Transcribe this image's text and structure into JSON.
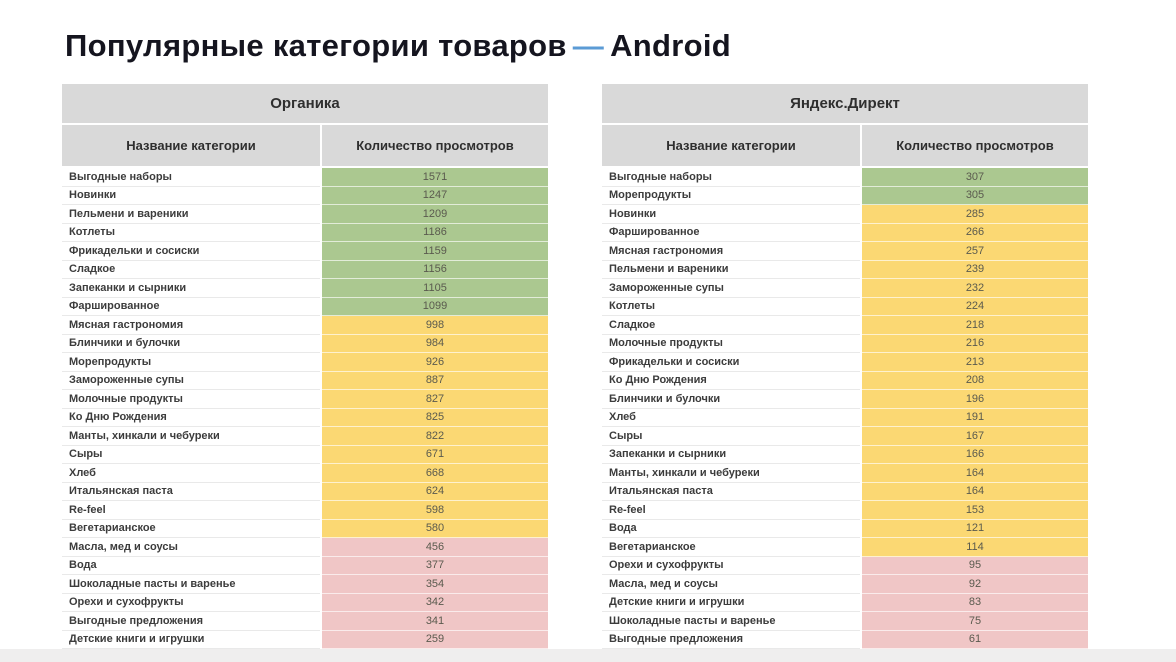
{
  "header": {
    "title": "Популярные категории товаров",
    "dash": "—",
    "platform": "Android"
  },
  "colors": {
    "green": "#abc890",
    "yellow": "#fbd873",
    "pink": "#f0c6c6",
    "header_bg": "#d9d9d9",
    "accent": "#5b9bd5",
    "footer_strip": "#efeeee",
    "title_color": "#15151f"
  },
  "chart_data": [
    {
      "type": "table",
      "title": "Органика",
      "columns": [
        "Название категории",
        "Количество просмотров"
      ],
      "legend_bands": {
        "green": "high",
        "yellow": "medium",
        "pink": "low"
      },
      "rows": [
        [
          "Выгодные наборы",
          1571,
          "green"
        ],
        [
          "Новинки",
          1247,
          "green"
        ],
        [
          "Пельмени и вареники",
          1209,
          "green"
        ],
        [
          "Котлеты",
          1186,
          "green"
        ],
        [
          "Фрикадельки и сосиски",
          1159,
          "green"
        ],
        [
          "Сладкое",
          1156,
          "green"
        ],
        [
          "Запеканки и сырники",
          1105,
          "green"
        ],
        [
          "Фаршированное",
          1099,
          "green"
        ],
        [
          "Мясная гастрономия",
          998,
          "yellow"
        ],
        [
          "Блинчики и булочки",
          984,
          "yellow"
        ],
        [
          "Морепродукты",
          926,
          "yellow"
        ],
        [
          "Замороженные супы",
          887,
          "yellow"
        ],
        [
          "Молочные продукты",
          827,
          "yellow"
        ],
        [
          "Ко Дню Рождения",
          825,
          "yellow"
        ],
        [
          "Манты, хинкали и чебуреки",
          822,
          "yellow"
        ],
        [
          "Сыры",
          671,
          "yellow"
        ],
        [
          "Хлеб",
          668,
          "yellow"
        ],
        [
          "Итальянская паста",
          624,
          "yellow"
        ],
        [
          "Re-feel",
          598,
          "yellow"
        ],
        [
          "Вегетарианское",
          580,
          "yellow"
        ],
        [
          "Масла, мед и соусы",
          456,
          "pink"
        ],
        [
          "Вода",
          377,
          "pink"
        ],
        [
          "Шоколадные пасты и варенье",
          354,
          "pink"
        ],
        [
          "Орехи и сухофрукты",
          342,
          "pink"
        ],
        [
          "Выгодные предложения",
          341,
          "pink"
        ],
        [
          "Детские книги и игрушки",
          259,
          "pink"
        ]
      ]
    },
    {
      "type": "table",
      "title": "Яндекс.Директ",
      "columns": [
        "Название категории",
        "Количество просмотров"
      ],
      "legend_bands": {
        "green": "high",
        "yellow": "medium",
        "pink": "low"
      },
      "rows": [
        [
          "Выгодные наборы",
          307,
          "green"
        ],
        [
          "Морепродукты",
          305,
          "green"
        ],
        [
          "Новинки",
          285,
          "yellow"
        ],
        [
          "Фаршированное",
          266,
          "yellow"
        ],
        [
          "Мясная гастрономия",
          257,
          "yellow"
        ],
        [
          "Пельмени и вареники",
          239,
          "yellow"
        ],
        [
          "Замороженные супы",
          232,
          "yellow"
        ],
        [
          "Котлеты",
          224,
          "yellow"
        ],
        [
          "Сладкое",
          218,
          "yellow"
        ],
        [
          "Молочные продукты",
          216,
          "yellow"
        ],
        [
          "Фрикадельки и сосиски",
          213,
          "yellow"
        ],
        [
          "Ко Дню Рождения",
          208,
          "yellow"
        ],
        [
          "Блинчики и булочки",
          196,
          "yellow"
        ],
        [
          "Хлеб",
          191,
          "yellow"
        ],
        [
          "Сыры",
          167,
          "yellow"
        ],
        [
          "Запеканки и сырники",
          166,
          "yellow"
        ],
        [
          "Манты, хинкали и чебуреки",
          164,
          "yellow"
        ],
        [
          "Итальянская паста",
          164,
          "yellow"
        ],
        [
          "Re-feel",
          153,
          "yellow"
        ],
        [
          "Вода",
          121,
          "yellow"
        ],
        [
          "Вегетарианское",
          114,
          "yellow"
        ],
        [
          "Орехи и сухофрукты",
          95,
          "pink"
        ],
        [
          "Масла, мед и соусы",
          92,
          "pink"
        ],
        [
          "Детские книги и игрушки",
          83,
          "pink"
        ],
        [
          "Шоколадные пасты и варенье",
          75,
          "pink"
        ],
        [
          "Выгодные предложения",
          61,
          "pink"
        ]
      ]
    }
  ]
}
